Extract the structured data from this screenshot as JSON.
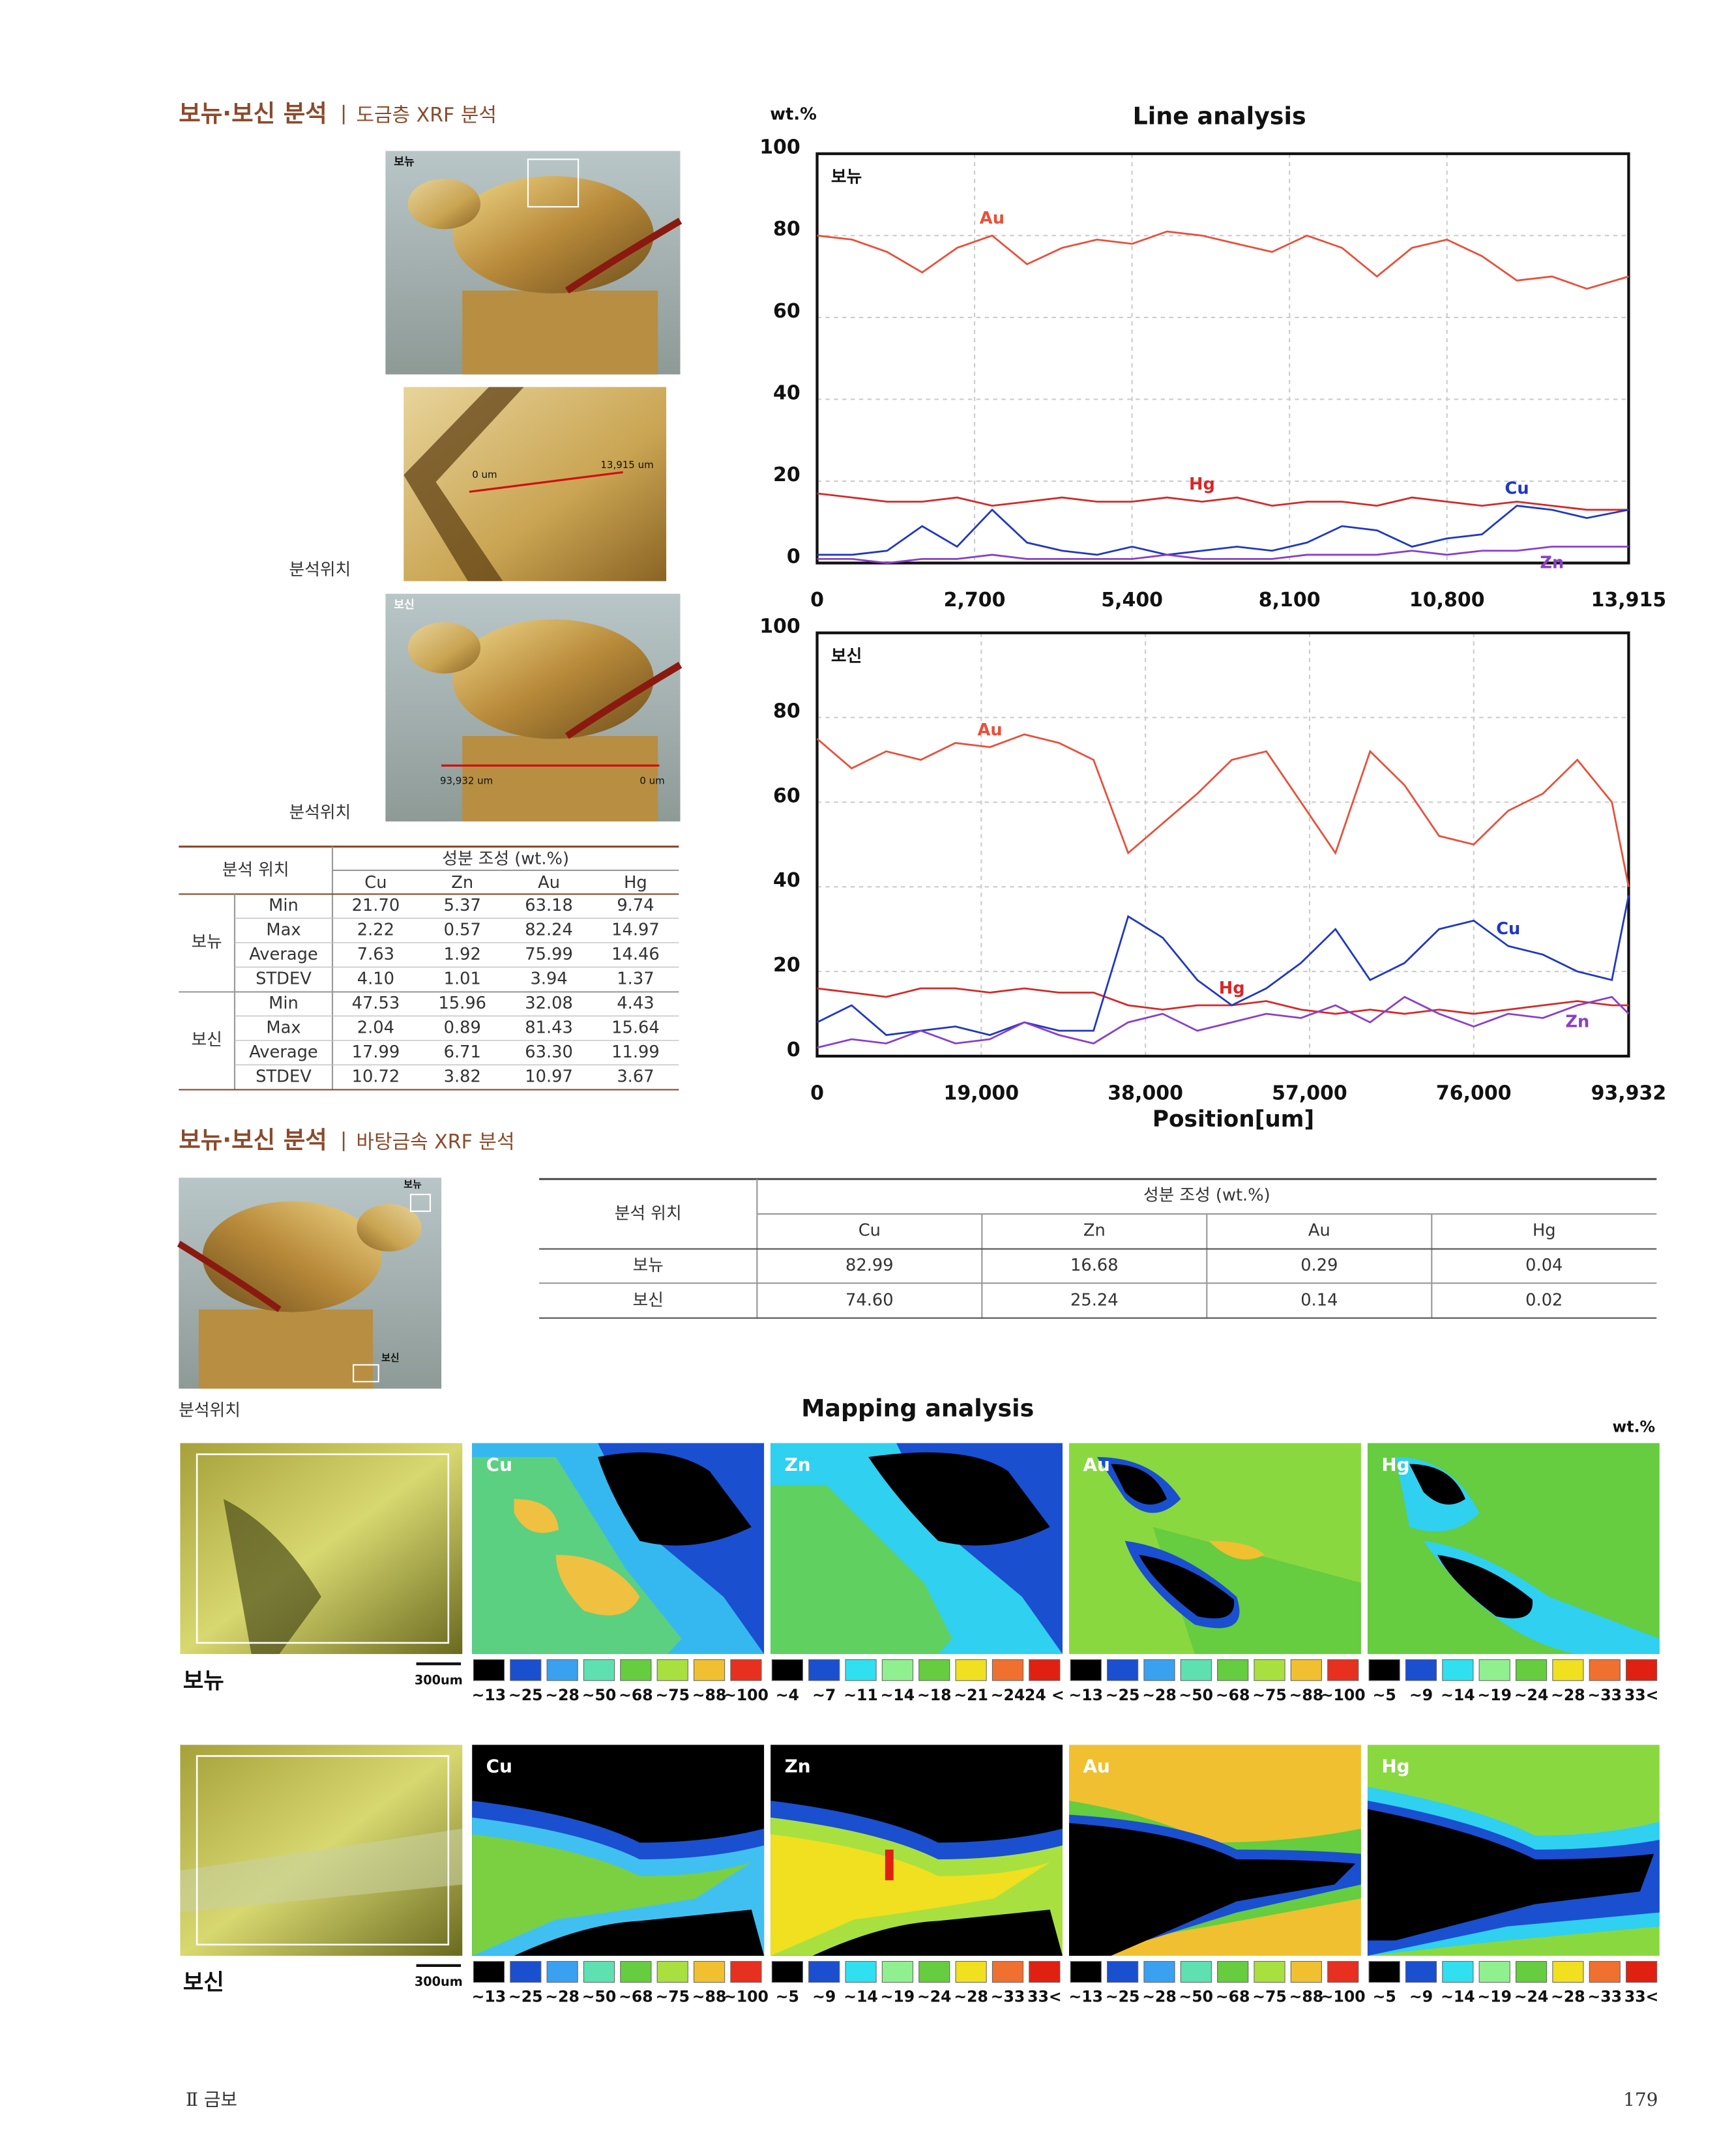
{
  "section1": {
    "title": "보뉴·보신 분석",
    "subtitle": "도금층 XRF 분석"
  },
  "photos": {
    "top_label": "보뉴",
    "bottom_label": "보신",
    "detail_start": "0 um",
    "detail_end": "13,915 um",
    "side_start": "93,932 um",
    "side_end": "0 um",
    "caption1": "분석위치",
    "caption2": "분석위치"
  },
  "table1": {
    "position_header": "분석 위치",
    "composition_header": "성분 조성 (wt.%)",
    "elements": [
      "Cu",
      "Zn",
      "Au",
      "Hg"
    ],
    "groups": [
      {
        "name": "보뉴",
        "rows": [
          {
            "stat": "Min",
            "values": [
              "21.70",
              "5.37",
              "63.18",
              "9.74"
            ]
          },
          {
            "stat": "Max",
            "values": [
              "2.22",
              "0.57",
              "82.24",
              "14.97"
            ]
          },
          {
            "stat": "Average",
            "values": [
              "7.63",
              "1.92",
              "75.99",
              "14.46"
            ]
          },
          {
            "stat": "STDEV",
            "values": [
              "4.10",
              "1.01",
              "3.94",
              "1.37"
            ]
          }
        ]
      },
      {
        "name": "보신",
        "rows": [
          {
            "stat": "Min",
            "values": [
              "47.53",
              "15.96",
              "32.08",
              "4.43"
            ]
          },
          {
            "stat": "Max",
            "values": [
              "2.04",
              "0.89",
              "81.43",
              "15.64"
            ]
          },
          {
            "stat": "Average",
            "values": [
              "17.99",
              "6.71",
              "63.30",
              "11.99"
            ]
          },
          {
            "stat": "STDEV",
            "values": [
              "10.72",
              "3.82",
              "10.97",
              "3.67"
            ]
          }
        ]
      }
    ]
  },
  "chart_data": [
    {
      "type": "line",
      "title": "Line analysis",
      "y_label": "wt.%",
      "label": "보뉴",
      "grid": true,
      "xlim": [
        0,
        13915
      ],
      "ylim": [
        0,
        100
      ],
      "xticks": [
        0,
        {
          "value": 2700,
          "label": "2,700"
        },
        {
          "value": 5400,
          "label": "5,400"
        },
        {
          "value": 8100,
          "label": "8,100"
        },
        {
          "value": 10800,
          "label": "10,800"
        },
        {
          "value": 13915,
          "label": "13,915"
        }
      ],
      "yticks": [
        0,
        20,
        40,
        60,
        80,
        100
      ],
      "x": [
        0,
        600,
        1200,
        1800,
        2400,
        3000,
        3600,
        4200,
        4800,
        5400,
        6000,
        6600,
        7200,
        7800,
        8400,
        9000,
        9600,
        10200,
        10800,
        11400,
        12000,
        12600,
        13200,
        13915
      ],
      "series": [
        {
          "name": "Au",
          "color": "#e8503a",
          "values": [
            80,
            79,
            76,
            71,
            77,
            80,
            73,
            77,
            79,
            78,
            81,
            80,
            78,
            76,
            80,
            77,
            70,
            77,
            79,
            75,
            69,
            70,
            67,
            70
          ]
        },
        {
          "name": "Hg",
          "color": "#d62828",
          "values": [
            17,
            16,
            15,
            15,
            16,
            14,
            15,
            16,
            15,
            15,
            16,
            15,
            16,
            14,
            15,
            15,
            14,
            16,
            15,
            14,
            15,
            14,
            13,
            13
          ]
        },
        {
          "name": "Cu",
          "color": "#2038c0",
          "values": [
            2,
            2,
            3,
            9,
            4,
            13,
            5,
            3,
            2,
            4,
            2,
            3,
            4,
            3,
            5,
            9,
            8,
            4,
            6,
            7,
            14,
            13,
            11,
            13
          ]
        },
        {
          "name": "Zn",
          "color": "#8a3fc8",
          "values": [
            1,
            1,
            0,
            1,
            1,
            2,
            1,
            1,
            1,
            1,
            2,
            1,
            1,
            1,
            2,
            2,
            2,
            3,
            2,
            3,
            3,
            4,
            4,
            4
          ]
        }
      ]
    },
    {
      "type": "line",
      "x_label": "Position[um]",
      "label": "보신",
      "grid": true,
      "xlim": [
        0,
        93932
      ],
      "ylim": [
        0,
        100
      ],
      "xticks": [
        0,
        {
          "value": 19000,
          "label": "19,000"
        },
        {
          "value": 38000,
          "label": "38,000"
        },
        {
          "value": 57000,
          "label": "57,000"
        },
        {
          "value": 76000,
          "label": "76,000"
        },
        {
          "value": 93932,
          "label": "93,932"
        }
      ],
      "yticks": [
        0,
        20,
        40,
        60,
        80,
        100
      ],
      "x": [
        0,
        4000,
        8000,
        12000,
        16000,
        20000,
        24000,
        28000,
        32000,
        36000,
        40000,
        44000,
        48000,
        52000,
        56000,
        60000,
        64000,
        68000,
        72000,
        76000,
        80000,
        84000,
        88000,
        92000,
        93932
      ],
      "series": [
        {
          "name": "Au",
          "color": "#e8503a",
          "values": [
            75,
            68,
            72,
            70,
            74,
            73,
            76,
            74,
            70,
            48,
            55,
            62,
            70,
            72,
            60,
            48,
            72,
            64,
            52,
            50,
            58,
            62,
            70,
            60,
            40
          ]
        },
        {
          "name": "Hg",
          "color": "#d62828",
          "values": [
            16,
            15,
            14,
            16,
            16,
            15,
            16,
            15,
            15,
            12,
            11,
            12,
            12,
            13,
            11,
            10,
            11,
            10,
            11,
            10,
            11,
            12,
            13,
            12,
            12
          ]
        },
        {
          "name": "Cu",
          "color": "#2038c0",
          "values": [
            8,
            12,
            5,
            6,
            7,
            5,
            8,
            6,
            6,
            33,
            28,
            18,
            12,
            16,
            22,
            30,
            18,
            22,
            30,
            32,
            26,
            24,
            20,
            18,
            38
          ]
        },
        {
          "name": "Zn",
          "color": "#8a3fc8",
          "values": [
            2,
            4,
            3,
            6,
            3,
            4,
            8,
            5,
            3,
            8,
            10,
            6,
            8,
            10,
            9,
            12,
            8,
            14,
            10,
            7,
            10,
            9,
            12,
            14,
            10
          ]
        }
      ]
    }
  ],
  "section2": {
    "title": "보뉴·보신 분석",
    "subtitle": "바탕금속 XRF 분석",
    "photo_top": "보뉴",
    "photo_bottom": "보신",
    "caption": "분석위치"
  },
  "table2": {
    "position_header": "분석 위치",
    "composition_header": "성분 조성 (wt.%)",
    "elements": [
      "Cu",
      "Zn",
      "Au",
      "Hg"
    ],
    "rows": [
      {
        "name": "보뉴",
        "values": [
          "82.99",
          "16.68",
          "0.29",
          "0.04"
        ]
      },
      {
        "name": "보신",
        "values": [
          "74.60",
          "25.24",
          "0.14",
          "0.02"
        ]
      }
    ]
  },
  "mapping": {
    "title": "Mapping analysis",
    "unit": "wt.%",
    "rows": [
      {
        "label": "보뉴",
        "scale": "300um",
        "maps": [
          {
            "element": "Cu",
            "legend": [
              "~13",
              "~25",
              "~28",
              "~50",
              "~68",
              "~75",
              "~88",
              "~100"
            ]
          },
          {
            "element": "Zn",
            "legend": [
              "~4",
              "~7",
              "~11",
              "~14",
              "~18",
              "~21",
              "~24",
              "24 <"
            ]
          },
          {
            "element": "Au",
            "legend": [
              "~13",
              "~25",
              "~28",
              "~50",
              "~68",
              "~75",
              "~88",
              "~100"
            ]
          },
          {
            "element": "Hg",
            "legend": [
              "~5",
              "~9",
              "~14",
              "~19",
              "~24",
              "~28",
              "~33",
              "33<"
            ]
          }
        ]
      },
      {
        "label": "보신",
        "scale": "300um",
        "maps": [
          {
            "element": "Cu",
            "legend": [
              "~13",
              "~25",
              "~28",
              "~50",
              "~68",
              "~75",
              "~88",
              "~100"
            ]
          },
          {
            "element": "Zn",
            "legend": [
              "~5",
              "~9",
              "~14",
              "~19",
              "~24",
              "~28",
              "~33",
              "33<"
            ]
          },
          {
            "element": "Au",
            "legend": [
              "~13",
              "~25",
              "~28",
              "~50",
              "~68",
              "~75",
              "~88",
              "~100"
            ]
          },
          {
            "element": "Hg",
            "legend": [
              "~5",
              "~9",
              "~14",
              "~19",
              "~24",
              "~28",
              "~33",
              "33<"
            ]
          }
        ]
      }
    ]
  },
  "footer": {
    "left": "Ⅱ 금보",
    "page": "179"
  }
}
